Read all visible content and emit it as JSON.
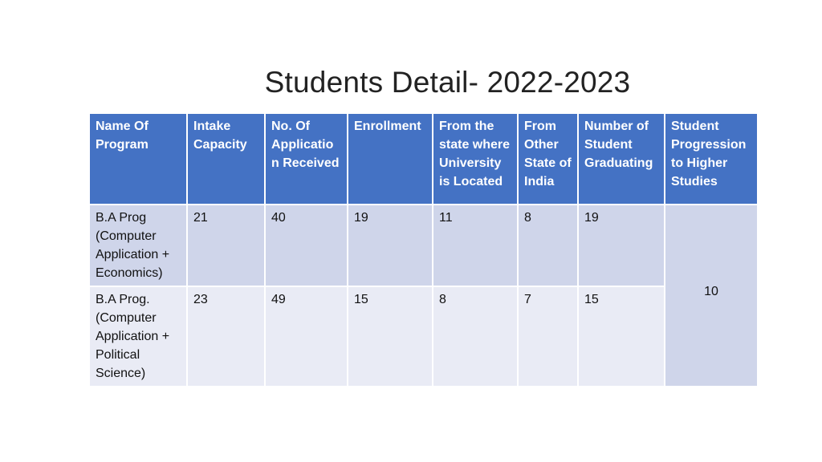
{
  "title": "Students Detail- 2022-2023",
  "table": {
    "headers": [
      "Name Of Program",
      "Intake Capacity",
      "No. Of Applicatio n Received",
      "Enrollment",
      "From the state where University is Located",
      "From Other State of India",
      "Number of Student Graduating",
      "Student Progression to Higher Studies"
    ],
    "rows": [
      {
        "program": "B.A Prog (Computer Application + Economics)",
        "intake": "21",
        "applications": "40",
        "enrollment": "19",
        "same_state": "11",
        "other_state": "8",
        "graduating": "19"
      },
      {
        "program": "B.A Prog. (Computer Application + Political Science)",
        "intake": "23",
        "applications": "49",
        "enrollment": "15",
        "same_state": "8",
        "other_state": "7",
        "graduating": "15"
      }
    ],
    "progression_combined": "10"
  }
}
